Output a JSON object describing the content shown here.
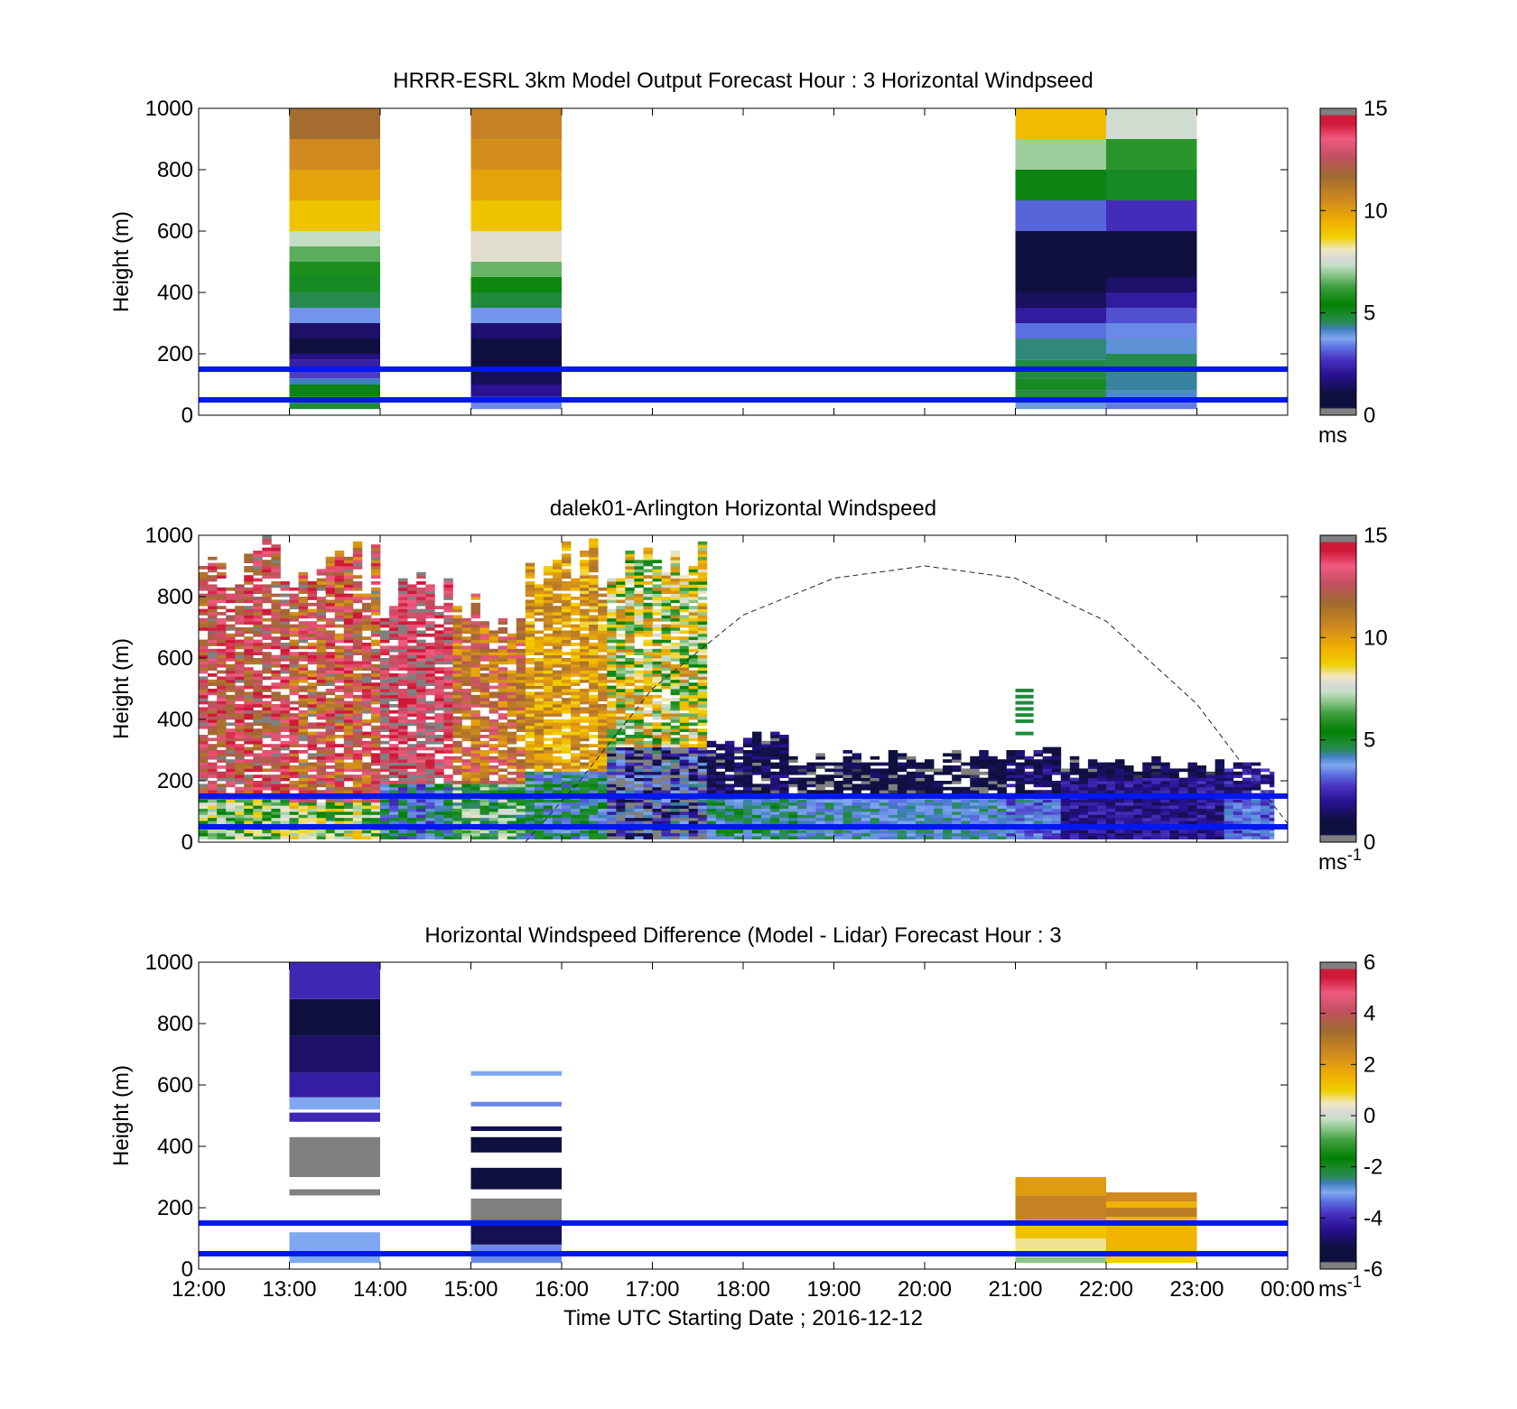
{
  "figure": {
    "xlabel": "Time UTC  Starting Date ; 2016-12-12"
  },
  "chart_data": [
    {
      "type": "heatmap",
      "title": "HRRR-ESRL 3km Model Output   Forecast Hour : 3 Horizontal Windpseed",
      "ylabel": "Height (m)",
      "ylim": [
        0,
        1000
      ],
      "yticks": [
        0,
        200,
        400,
        600,
        800,
        1000
      ],
      "xticks": [
        "12:00",
        "13:00",
        "14:00",
        "15:00",
        "16:00",
        "17:00",
        "18:00",
        "19:00",
        "20:00",
        "21:00",
        "22:00",
        "23:00",
        "00:00"
      ],
      "xlim_hours": [
        12,
        24
      ],
      "colorbar": {
        "min": 0,
        "max": 15,
        "ticks": [
          0,
          5,
          10,
          15
        ],
        "unit": "ms"
      },
      "reference_lines_m": [
        50,
        150
      ],
      "columns": [
        {
          "start_hour": 13,
          "end_hour": 14,
          "bins": [
            {
              "bottom": 20,
              "top": 40,
              "value": 4.8
            },
            {
              "bottom": 40,
              "top": 60,
              "value": 4.6
            },
            {
              "bottom": 60,
              "top": 100,
              "value": 5.2
            },
            {
              "bottom": 100,
              "top": 120,
              "value": 4.2
            },
            {
              "bottom": 120,
              "top": 150,
              "value": 2.8
            },
            {
              "bottom": 150,
              "top": 180,
              "value": 2.3
            },
            {
              "bottom": 180,
              "top": 200,
              "value": 1.8
            },
            {
              "bottom": 200,
              "top": 250,
              "value": 1.0
            },
            {
              "bottom": 250,
              "top": 300,
              "value": 1.5
            },
            {
              "bottom": 300,
              "top": 350,
              "value": 3.6
            },
            {
              "bottom": 350,
              "top": 400,
              "value": 4.6
            },
            {
              "bottom": 400,
              "top": 450,
              "value": 5.0
            },
            {
              "bottom": 450,
              "top": 500,
              "value": 5.8
            },
            {
              "bottom": 500,
              "top": 550,
              "value": 6.5
            },
            {
              "bottom": 550,
              "top": 600,
              "value": 7.3
            },
            {
              "bottom": 600,
              "top": 700,
              "value": 9.0
            },
            {
              "bottom": 700,
              "top": 800,
              "value": 9.8
            },
            {
              "bottom": 800,
              "top": 900,
              "value": 10.5
            },
            {
              "bottom": 900,
              "top": 1000,
              "value": 11.6
            }
          ]
        },
        {
          "start_hour": 15,
          "end_hour": 16,
          "bins": [
            {
              "bottom": 20,
              "top": 40,
              "value": 3.5
            },
            {
              "bottom": 40,
              "top": 60,
              "value": 2.8
            },
            {
              "bottom": 60,
              "top": 100,
              "value": 2.0
            },
            {
              "bottom": 100,
              "top": 150,
              "value": 1.3
            },
            {
              "bottom": 150,
              "top": 200,
              "value": 0.9
            },
            {
              "bottom": 200,
              "top": 250,
              "value": 0.7
            },
            {
              "bottom": 250,
              "top": 300,
              "value": 1.6
            },
            {
              "bottom": 300,
              "top": 350,
              "value": 3.6
            },
            {
              "bottom": 350,
              "top": 400,
              "value": 4.8
            },
            {
              "bottom": 400,
              "top": 450,
              "value": 5.6
            },
            {
              "bottom": 450,
              "top": 500,
              "value": 6.6
            },
            {
              "bottom": 500,
              "top": 600,
              "value": 7.8
            },
            {
              "bottom": 600,
              "top": 700,
              "value": 9.0
            },
            {
              "bottom": 700,
              "top": 800,
              "value": 9.8
            },
            {
              "bottom": 800,
              "top": 900,
              "value": 10.4
            },
            {
              "bottom": 900,
              "top": 1000,
              "value": 10.8
            }
          ]
        },
        {
          "start_hour": 21,
          "end_hour": 22,
          "bins": [
            {
              "bottom": 20,
              "top": 40,
              "value": 3.9
            },
            {
              "bottom": 40,
              "top": 80,
              "value": 4.6
            },
            {
              "bottom": 80,
              "top": 120,
              "value": 5.0
            },
            {
              "bottom": 120,
              "top": 180,
              "value": 4.7
            },
            {
              "bottom": 180,
              "top": 250,
              "value": 4.4
            },
            {
              "bottom": 250,
              "top": 300,
              "value": 3.3
            },
            {
              "bottom": 300,
              "top": 350,
              "value": 2.2
            },
            {
              "bottom": 350,
              "top": 400,
              "value": 1.4
            },
            {
              "bottom": 400,
              "top": 450,
              "value": 0.9
            },
            {
              "bottom": 450,
              "top": 500,
              "value": 0.5
            },
            {
              "bottom": 500,
              "top": 600,
              "value": 0.9
            },
            {
              "bottom": 600,
              "top": 700,
              "value": 3.2
            },
            {
              "bottom": 700,
              "top": 800,
              "value": 5.2
            },
            {
              "bottom": 800,
              "top": 900,
              "value": 7.0
            },
            {
              "bottom": 900,
              "top": 1000,
              "value": 9.2
            }
          ]
        },
        {
          "start_hour": 22,
          "end_hour": 23,
          "bins": [
            {
              "bottom": 20,
              "top": 40,
              "value": 3.4
            },
            {
              "bottom": 40,
              "top": 80,
              "value": 4.1
            },
            {
              "bottom": 80,
              "top": 150,
              "value": 4.3
            },
            {
              "bottom": 150,
              "top": 200,
              "value": 4.6
            },
            {
              "bottom": 200,
              "top": 250,
              "value": 4.0
            },
            {
              "bottom": 250,
              "top": 300,
              "value": 3.5
            },
            {
              "bottom": 300,
              "top": 350,
              "value": 3.0
            },
            {
              "bottom": 350,
              "top": 400,
              "value": 2.2
            },
            {
              "bottom": 400,
              "top": 450,
              "value": 1.5
            },
            {
              "bottom": 450,
              "top": 600,
              "value": 0.9
            },
            {
              "bottom": 600,
              "top": 700,
              "value": 2.6
            },
            {
              "bottom": 700,
              "top": 800,
              "value": 5.0
            },
            {
              "bottom": 800,
              "top": 900,
              "value": 6.0
            },
            {
              "bottom": 900,
              "top": 1000,
              "value": 7.5
            }
          ]
        }
      ]
    },
    {
      "type": "heatmap",
      "title": "dalek01-Arlington  Horizontal Windspeed",
      "ylabel": "Height (m)",
      "ylim": [
        0,
        1000
      ],
      "yticks": [
        0,
        200,
        400,
        600,
        800,
        1000
      ],
      "xticks": [
        "12:00",
        "13:00",
        "14:00",
        "15:00",
        "16:00",
        "17:00",
        "18:00",
        "19:00",
        "20:00",
        "21:00",
        "22:00",
        "23:00",
        "00:00"
      ],
      "xlim_hours": [
        12,
        24
      ],
      "colorbar": {
        "min": 0,
        "max": 15,
        "ticks": [
          0,
          5,
          10,
          15
        ],
        "unit": "ms",
        "unit_exponent": "-1"
      },
      "reference_lines_m": [
        50,
        150
      ],
      "overlay_curve": {
        "style": "dashed",
        "points": [
          [
            15.6,
            0
          ],
          [
            16.2,
            200
          ],
          [
            17.0,
            500
          ],
          [
            18.0,
            740
          ],
          [
            19.0,
            860
          ],
          [
            20.0,
            900
          ],
          [
            21.0,
            860
          ],
          [
            22.0,
            720
          ],
          [
            23.0,
            450
          ],
          [
            24.0,
            60
          ]
        ]
      },
      "profile_groups": [
        {
          "start_hour": 12.0,
          "end_hour": 13.0,
          "top": 1000,
          "low": {
            "value": 7.0,
            "top": 130
          },
          "high": 13.0,
          "variation": 2.0
        },
        {
          "start_hour": 13.0,
          "end_hour": 14.0,
          "top": 980,
          "low": {
            "value": 7.0,
            "top": 120
          },
          "high": 12.5,
          "variation": 2.5
        },
        {
          "start_hour": 14.0,
          "end_hour": 14.8,
          "top": 900,
          "low": {
            "value": 4.0,
            "top": 180
          },
          "high": 14.0,
          "variation": 1.5
        },
        {
          "start_hour": 14.8,
          "end_hour": 15.6,
          "top": 820,
          "low": {
            "value": 6.0,
            "top": 180
          },
          "high": 11.5,
          "variation": 2.0
        },
        {
          "start_hour": 15.6,
          "end_hour": 16.5,
          "top": 1000,
          "low": {
            "value": 4.5,
            "top": 220
          },
          "high": 10.0,
          "variation": 1.5
        },
        {
          "start_hour": 16.5,
          "end_hour": 17.6,
          "top": 1000,
          "low": {
            "value": 1.5,
            "top": 300
          },
          "high": 8.0,
          "variation": 3.0
        },
        {
          "start_hour": 17.6,
          "end_hour": 18.6,
          "top": 360,
          "low": {
            "value": 4.5,
            "top": 150
          },
          "high": 1.2,
          "variation": 1.0
        },
        {
          "start_hour": 18.6,
          "end_hour": 20.9,
          "top": 300,
          "low": {
            "value": 4.0,
            "top": 150
          },
          "high": 0.8,
          "variation": 0.8
        },
        {
          "start_hour": 20.9,
          "end_hour": 21.5,
          "top": 320,
          "low": {
            "value": 3.5,
            "top": 150
          },
          "high": 1.5,
          "variation": 1.0
        },
        {
          "start_hour": 21.5,
          "end_hour": 23.3,
          "top": 280,
          "low": {
            "value": 2.0,
            "top": 200
          },
          "high": 1.0,
          "variation": 0.8
        },
        {
          "start_hour": 23.3,
          "end_hour": 23.85,
          "top": 280,
          "low": {
            "value": 3.2,
            "top": 150
          },
          "high": 2.0,
          "variation": 1.0
        }
      ],
      "isolated_marks": [
        {
          "start_hour": 21.0,
          "end_hour": 21.2,
          "heights": [
            360,
            400,
            420,
            440,
            460,
            480,
            500
          ],
          "value": 4.8
        }
      ]
    },
    {
      "type": "heatmap",
      "title": "Horizontal Windspeed Difference (Model - Lidar) Forecast Hour : 3",
      "ylabel": "Height (m)",
      "ylim": [
        0,
        1000
      ],
      "yticks": [
        0,
        200,
        400,
        600,
        800,
        1000
      ],
      "xticks": [
        "12:00",
        "13:00",
        "14:00",
        "15:00",
        "16:00",
        "17:00",
        "18:00",
        "19:00",
        "20:00",
        "21:00",
        "22:00",
        "23:00",
        "00:00"
      ],
      "xlim_hours": [
        12,
        24
      ],
      "colorbar": {
        "min": -6,
        "max": 6,
        "ticks": [
          -6,
          -4,
          -2,
          0,
          2,
          4,
          6
        ],
        "unit": "ms",
        "unit_exponent": "-1"
      },
      "reference_lines_m": [
        50,
        150
      ],
      "columns": [
        {
          "start_hour": 13,
          "end_hour": 14,
          "bins": [
            {
              "bottom": 20,
              "top": 120,
              "value": -3.0
            },
            {
              "bottom": 240,
              "top": 260,
              "value": -6.0
            },
            {
              "bottom": 300,
              "top": 430,
              "value": -6.0
            },
            {
              "bottom": 480,
              "top": 510,
              "value": -4.0
            },
            {
              "bottom": 520,
              "top": 560,
              "value": -3.0
            },
            {
              "bottom": 560,
              "top": 640,
              "value": -4.2
            },
            {
              "bottom": 640,
              "top": 760,
              "value": -4.8
            },
            {
              "bottom": 760,
              "top": 880,
              "value": -5.2
            },
            {
              "bottom": 880,
              "top": 1000,
              "value": -4.0
            }
          ]
        },
        {
          "start_hour": 15,
          "end_hour": 16,
          "bins": [
            {
              "bottom": 20,
              "top": 80,
              "value": -3.2
            },
            {
              "bottom": 80,
              "top": 160,
              "value": -5.0
            },
            {
              "bottom": 160,
              "top": 230,
              "value": -6.0
            },
            {
              "bottom": 260,
              "top": 330,
              "value": -5.4
            },
            {
              "bottom": 380,
              "top": 430,
              "value": -5.6
            },
            {
              "bottom": 450,
              "top": 465,
              "value": -5.0
            },
            {
              "bottom": 530,
              "top": 545,
              "value": -3.2
            },
            {
              "bottom": 630,
              "top": 645,
              "value": -3.0
            }
          ]
        },
        {
          "start_hour": 21,
          "end_hour": 22,
          "bins": [
            {
              "bottom": 20,
              "top": 40,
              "value": -0.5
            },
            {
              "bottom": 40,
              "top": 100,
              "value": 0.6
            },
            {
              "bottom": 100,
              "top": 160,
              "value": 1.2
            },
            {
              "bottom": 160,
              "top": 240,
              "value": 2.6
            },
            {
              "bottom": 240,
              "top": 300,
              "value": 2.0
            }
          ]
        },
        {
          "start_hour": 22,
          "end_hour": 23,
          "bins": [
            {
              "bottom": 20,
              "top": 40,
              "value": 1.0
            },
            {
              "bottom": 40,
              "top": 170,
              "value": 1.5
            },
            {
              "bottom": 170,
              "top": 200,
              "value": 2.8
            },
            {
              "bottom": 200,
              "top": 220,
              "value": 1.5
            },
            {
              "bottom": 220,
              "top": 250,
              "value": 2.4
            }
          ]
        }
      ]
    }
  ]
}
